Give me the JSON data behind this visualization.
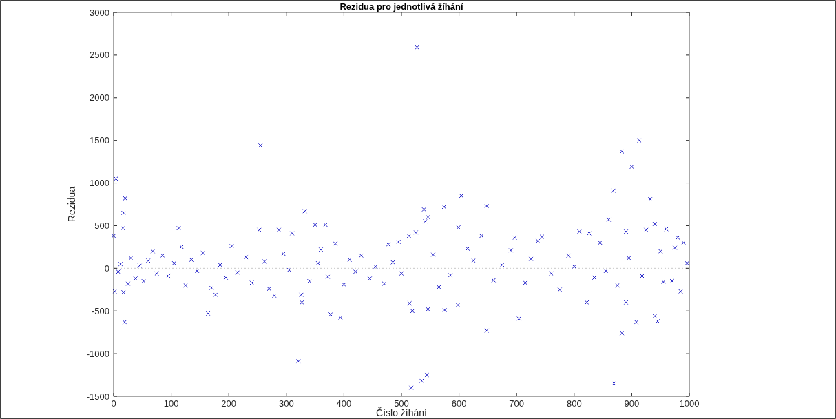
{
  "chart_data": {
    "type": "scatter",
    "title": "Rezidua pro jednotlivá žíhání",
    "xlabel": "Číslo žíhání",
    "ylabel": "Rezidua",
    "xlim": [
      0,
      1000
    ],
    "xticks": [
      0,
      100,
      200,
      300,
      400,
      500,
      600,
      700,
      800,
      900,
      1000
    ],
    "ylim": [
      -1500,
      3000
    ],
    "yticks": [
      -1500,
      -1000,
      -500,
      0,
      500,
      1000,
      1500,
      2000,
      2500,
      3000
    ],
    "grid": false,
    "marker": "cross",
    "ref_lines": [
      {
        "axis": "y",
        "value": 0,
        "color": "#c8c8c8",
        "line_style": "dotted"
      }
    ],
    "series": [
      {
        "color": "#1f1fc8",
        "x": [
          4,
          20,
          17,
          16,
          0,
          2,
          17,
          19,
          164,
          321,
          332,
          350,
          368,
          377,
          394,
          327,
          326,
          113,
          253,
          287,
          310,
          177,
          279,
          385,
          255,
          527,
          604,
          648,
          574,
          539,
          541,
          546,
          599,
          868,
          860,
          809,
          826,
          890,
          517,
          535,
          544,
          869,
          648,
          704,
          883,
          519,
          546,
          575,
          598,
          514,
          822,
          697,
          744,
          737,
          477,
          495,
          525,
          513,
          639,
          890,
          900,
          883,
          913,
          932,
          908,
          945,
          940,
          940,
          960,
          980,
          925,
          985,
          970,
          950,
          990,
          8,
          12,
          25,
          30,
          38,
          45,
          52,
          60,
          68,
          75,
          85,
          95,
          105,
          118,
          125,
          135,
          145,
          155,
          170,
          185,
          195,
          205,
          215,
          230,
          240,
          262,
          270,
          295,
          305,
          340,
          355,
          360,
          372,
          400,
          410,
          420,
          430,
          445,
          455,
          470,
          485,
          500,
          555,
          565,
          585,
          615,
          625,
          660,
          675,
          690,
          715,
          725,
          760,
          775,
          790,
          800,
          835,
          845,
          855,
          875,
          895,
          918,
          955,
          975,
          996
        ],
        "values": [
          1050,
          820,
          650,
          470,
          380,
          -270,
          -280,
          -630,
          -530,
          -1090,
          670,
          510,
          510,
          -540,
          -580,
          -400,
          -310,
          470,
          450,
          450,
          410,
          -310,
          -320,
          290,
          1440,
          2590,
          850,
          730,
          720,
          690,
          550,
          600,
          480,
          910,
          570,
          430,
          410,
          430,
          -1400,
          -1320,
          -1250,
          -1350,
          -730,
          -590,
          -760,
          -500,
          -480,
          -490,
          -430,
          -410,
          -400,
          360,
          370,
          320,
          280,
          310,
          420,
          380,
          380,
          -400,
          1190,
          1370,
          1500,
          810,
          -630,
          -620,
          -560,
          520,
          460,
          360,
          450,
          -270,
          -150,
          200,
          300,
          -40,
          50,
          -180,
          120,
          -120,
          30,
          -150,
          90,
          200,
          -60,
          150,
          -90,
          60,
          250,
          -200,
          100,
          -30,
          180,
          -230,
          40,
          -110,
          260,
          -50,
          130,
          -170,
          80,
          -240,
          170,
          -20,
          -150,
          60,
          220,
          -100,
          -190,
          100,
          -40,
          150,
          -120,
          20,
          -180,
          70,
          -60,
          160,
          -220,
          -80,
          230,
          90,
          -140,
          40,
          210,
          -170,
          110,
          -60,
          -250,
          150,
          20,
          -110,
          300,
          -30,
          -200,
          120,
          -90,
          -160,
          240,
          60
        ]
      }
    ]
  }
}
